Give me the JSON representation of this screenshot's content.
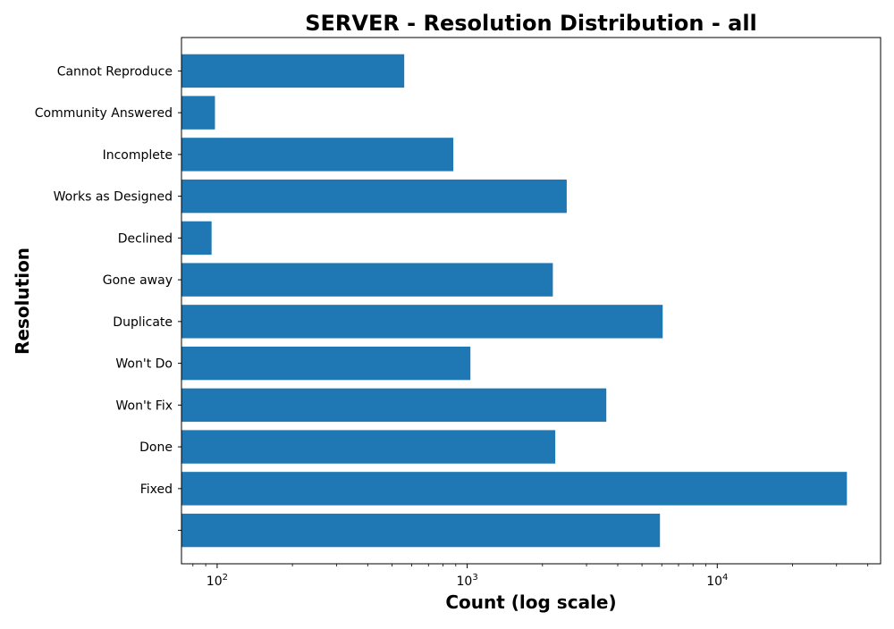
{
  "chart_data": {
    "type": "bar",
    "orientation": "horizontal",
    "title": "SERVER - Resolution Distribution - all",
    "xlabel": "Count (log scale)",
    "ylabel": "Resolution",
    "x_scale": "log",
    "xlim": [
      72,
      45000
    ],
    "x_ticks": [
      {
        "value": 100,
        "base": "10",
        "exp": "2"
      },
      {
        "value": 1000,
        "base": "10",
        "exp": "3"
      },
      {
        "value": 10000,
        "base": "10",
        "exp": "4"
      }
    ],
    "categories": [
      "",
      "Fixed",
      "Done",
      "Won't Fix",
      "Won't Do",
      "Duplicate",
      "Gone away",
      "Declined",
      "Works as Designed",
      "Incomplete",
      "Community Answered",
      "Cannot Reproduce"
    ],
    "values": [
      5900,
      33000,
      2250,
      3600,
      1030,
      6050,
      2200,
      95,
      2500,
      880,
      98,
      560
    ],
    "bar_color": "#1f77b4",
    "grid": false,
    "legend": "none"
  }
}
